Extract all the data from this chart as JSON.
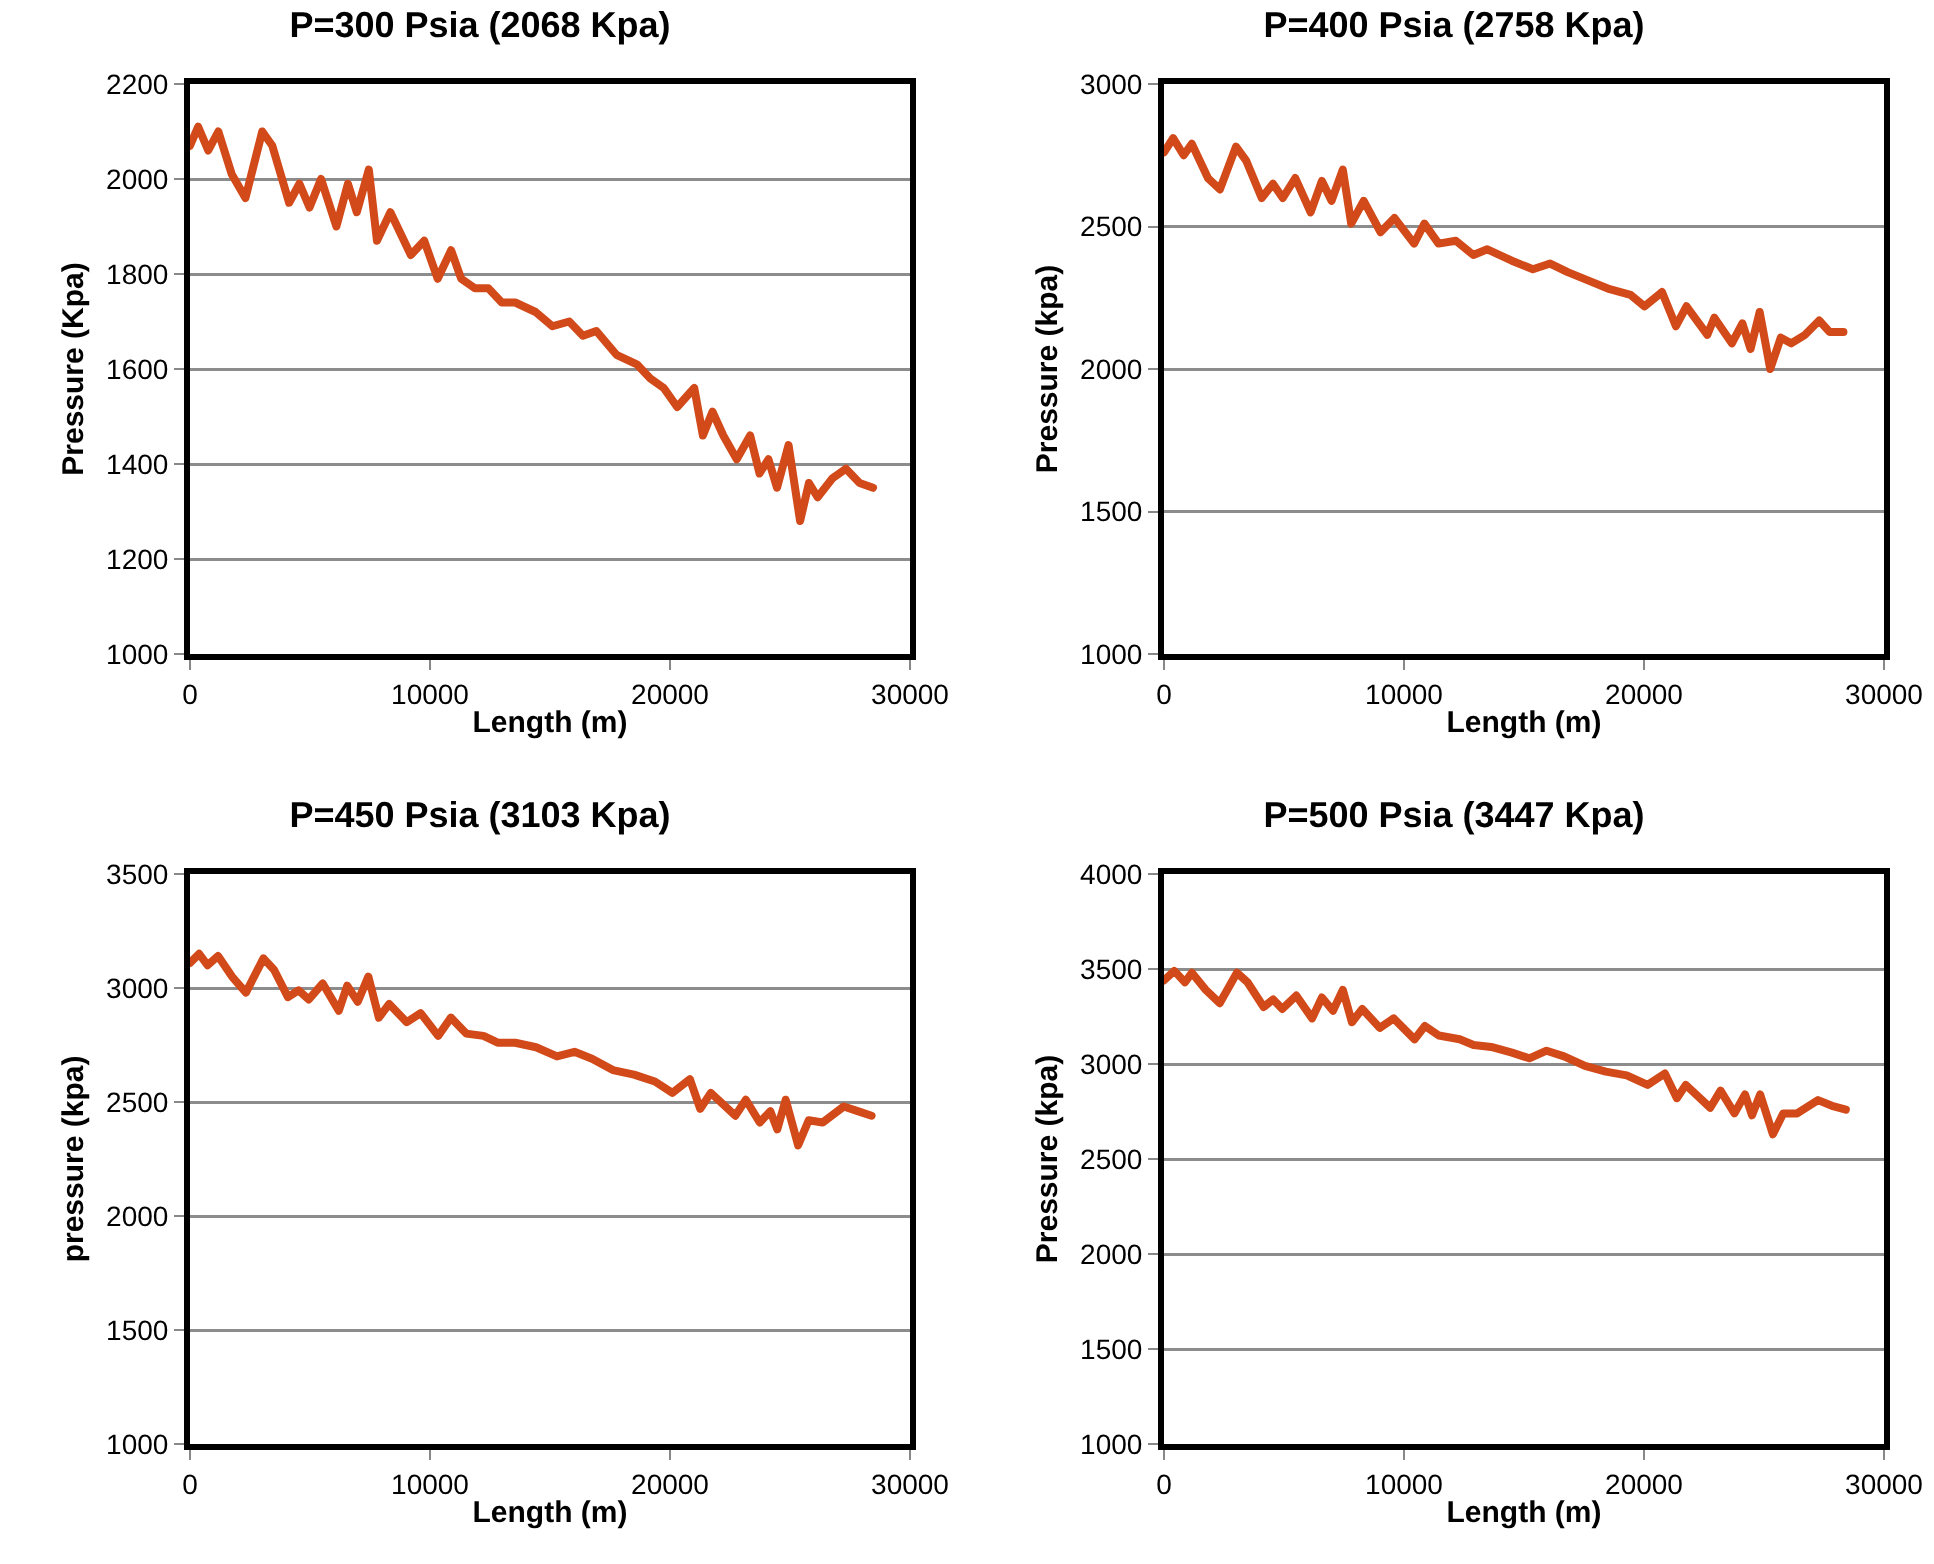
{
  "chart_data": [
    {
      "type": "line",
      "title": "P=300 Psia (2068 Kpa)",
      "xlabel": "Length (m)",
      "ylabel": "Pressure (Kpa)",
      "xlim": [
        0,
        30000
      ],
      "xticks": [
        0,
        10000,
        20000,
        30000
      ],
      "ylim": [
        1000,
        2200
      ],
      "yticks": [
        1000,
        1200,
        1400,
        1600,
        1800,
        2000,
        2200
      ],
      "grid": "y",
      "marker": "none",
      "line_style": "solid",
      "series": [
        {
          "color": "#d2491a",
          "x": [
            0,
            340,
            760,
            1180,
            1740,
            2310,
            3010,
            3430,
            4130,
            4560,
            4980,
            5460,
            6100,
            6580,
            6950,
            7450,
            7790,
            8350,
            9200,
            9760,
            10320,
            10880,
            11300,
            11870,
            12430,
            12990,
            13550,
            14400,
            15100,
            15800,
            16370,
            16930,
            17770,
            18620,
            19180,
            19740,
            20300,
            21010,
            21370,
            21770,
            22220,
            22780,
            23340,
            23730,
            24100,
            24460,
            24940,
            25420,
            25790,
            26150,
            26770,
            27330,
            27900,
            28460
          ],
          "values": [
            2070,
            2110,
            2060,
            2100,
            2010,
            1960,
            2100,
            2070,
            1950,
            1990,
            1940,
            2000,
            1900,
            1990,
            1930,
            2020,
            1870,
            1930,
            1840,
            1870,
            1790,
            1850,
            1790,
            1770,
            1770,
            1740,
            1740,
            1720,
            1690,
            1700,
            1670,
            1680,
            1630,
            1610,
            1580,
            1560,
            1520,
            1560,
            1460,
            1510,
            1460,
            1410,
            1460,
            1380,
            1410,
            1350,
            1440,
            1280,
            1360,
            1330,
            1370,
            1390,
            1360,
            1350
          ]
        }
      ]
    },
    {
      "type": "line",
      "title": "P=400 Psia (2758 Kpa)",
      "xlabel": "Length (m)",
      "ylabel": "Pressure (kpa)",
      "xlim": [
        0,
        30000
      ],
      "xticks": [
        0,
        10000,
        20000,
        30000
      ],
      "ylim": [
        1000,
        3000
      ],
      "yticks": [
        1000,
        1500,
        2000,
        2500,
        3000
      ],
      "grid": "y",
      "marker": "none",
      "line_style": "solid",
      "series": [
        {
          "color": "#d2491a",
          "x": [
            0,
            380,
            820,
            1160,
            1830,
            2330,
            3000,
            3430,
            4070,
            4540,
            4950,
            5470,
            6110,
            6580,
            6980,
            7450,
            7800,
            8320,
            9020,
            9600,
            10420,
            10850,
            11440,
            12160,
            12890,
            13470,
            14490,
            15370,
            16090,
            16820,
            17690,
            18570,
            19440,
            20020,
            20750,
            21330,
            21770,
            22640,
            22930,
            23660,
            24100,
            24440,
            24820,
            25260,
            25700,
            26130,
            26710,
            27300,
            27730,
            28310
          ],
          "values": [
            2760,
            2810,
            2750,
            2790,
            2670,
            2630,
            2780,
            2730,
            2600,
            2650,
            2600,
            2670,
            2550,
            2660,
            2590,
            2700,
            2510,
            2590,
            2480,
            2530,
            2440,
            2510,
            2440,
            2450,
            2400,
            2420,
            2380,
            2350,
            2370,
            2340,
            2310,
            2280,
            2260,
            2220,
            2270,
            2150,
            2220,
            2120,
            2180,
            2090,
            2160,
            2070,
            2200,
            2000,
            2110,
            2090,
            2120,
            2170,
            2130,
            2130
          ]
        }
      ]
    },
    {
      "type": "line",
      "title": "P=450 Psia (3103 Kpa)",
      "xlabel": "Length (m)",
      "ylabel": "pressure (kpa)",
      "xlim": [
        0,
        30000
      ],
      "xticks": [
        0,
        10000,
        20000,
        30000
      ],
      "ylim": [
        1000,
        3500
      ],
      "yticks": [
        1000,
        1500,
        2000,
        2500,
        3000,
        3500
      ],
      "grid": "y",
      "marker": "none",
      "line_style": "solid",
      "series": [
        {
          "color": "#d2491a",
          "x": [
            0,
            380,
            730,
            1170,
            1750,
            2330,
            3060,
            3500,
            4080,
            4520,
            4950,
            5530,
            6200,
            6550,
            6990,
            7430,
            7870,
            8300,
            9030,
            9610,
            10340,
            10870,
            11510,
            12230,
            12820,
            13550,
            14420,
            15290,
            16020,
            16750,
            17620,
            18500,
            19370,
            20100,
            20830,
            21260,
            21700,
            22720,
            23160,
            23740,
            24180,
            24470,
            24820,
            25340,
            25780,
            26360,
            27240,
            27820,
            28400
          ],
          "values": [
            3110,
            3150,
            3100,
            3140,
            3050,
            2980,
            3130,
            3080,
            2960,
            2990,
            2950,
            3020,
            2900,
            3010,
            2940,
            3050,
            2870,
            2930,
            2850,
            2890,
            2790,
            2870,
            2800,
            2790,
            2760,
            2760,
            2740,
            2700,
            2720,
            2690,
            2640,
            2620,
            2590,
            2540,
            2600,
            2470,
            2540,
            2440,
            2510,
            2410,
            2460,
            2380,
            2510,
            2310,
            2420,
            2410,
            2480,
            2460,
            2440
          ]
        }
      ]
    },
    {
      "type": "line",
      "title": "P=500 Psia (3447 Kpa)",
      "xlabel": "Length (m)",
      "ylabel": "Pressure (kpa)",
      "xlim": [
        0,
        30000
      ],
      "xticks": [
        0,
        10000,
        20000,
        30000
      ],
      "ylim": [
        1000,
        4000
      ],
      "yticks": [
        1000,
        1500,
        2000,
        2500,
        3000,
        3500,
        4000
      ],
      "grid": "y",
      "marker": "none",
      "line_style": "solid",
      "series": [
        {
          "color": "#d2491a",
          "x": [
            0,
            430,
            870,
            1160,
            1740,
            2320,
            3040,
            3480,
            4150,
            4550,
            4930,
            5510,
            6170,
            6580,
            7040,
            7450,
            7830,
            8260,
            8990,
            9570,
            10440,
            10870,
            11450,
            12320,
            12900,
            13630,
            14500,
            15220,
            15940,
            16670,
            17540,
            18410,
            19280,
            20150,
            20870,
            21370,
            21740,
            22760,
            23190,
            23770,
            24210,
            24500,
            24840,
            25370,
            25800,
            26380,
            27250,
            27830,
            28410
          ],
          "values": [
            3440,
            3490,
            3430,
            3480,
            3390,
            3320,
            3480,
            3430,
            3300,
            3340,
            3290,
            3360,
            3240,
            3350,
            3280,
            3390,
            3220,
            3290,
            3190,
            3240,
            3130,
            3200,
            3150,
            3130,
            3100,
            3090,
            3060,
            3030,
            3070,
            3040,
            2990,
            2960,
            2940,
            2890,
            2950,
            2820,
            2890,
            2770,
            2860,
            2740,
            2840,
            2730,
            2840,
            2630,
            2740,
            2740,
            2810,
            2780,
            2760
          ]
        }
      ]
    }
  ]
}
